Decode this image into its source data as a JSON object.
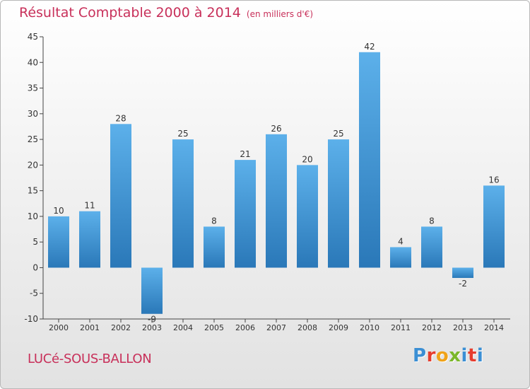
{
  "chart_title": "Résultat Comptable 2000 à 2014",
  "chart_subtitle": "(en milliers d'€)",
  "commune": "LUCé-SOUS-BALLON",
  "logo": {
    "letters": [
      "P",
      "r",
      "o",
      "x",
      "i",
      "t",
      "i"
    ],
    "colors": [
      "#3b8fd4",
      "#e63d2e",
      "#f0a319",
      "#7bb72a",
      "#3b8fd4",
      "#e63d2e",
      "#3b8fd4"
    ]
  },
  "colors": {
    "bar_top": "#5cb0ea",
    "bar_bottom": "#2a78b8",
    "title": "#c8305a"
  },
  "chart_data": {
    "type": "bar",
    "categories": [
      "2000",
      "2001",
      "2002",
      "2003",
      "2004",
      "2005",
      "2006",
      "2007",
      "2008",
      "2009",
      "2010",
      "2011",
      "2012",
      "2013",
      "2014"
    ],
    "values": [
      10,
      11,
      28,
      -9,
      25,
      8,
      21,
      26,
      20,
      25,
      42,
      4,
      8,
      -2,
      16
    ],
    "title": "Résultat Comptable 2000 à 2014",
    "ylim": [
      -10,
      45
    ],
    "yticks": [
      -10,
      -5,
      0,
      5,
      10,
      15,
      20,
      25,
      30,
      35,
      40,
      45
    ],
    "grid": false,
    "legend": "none"
  }
}
